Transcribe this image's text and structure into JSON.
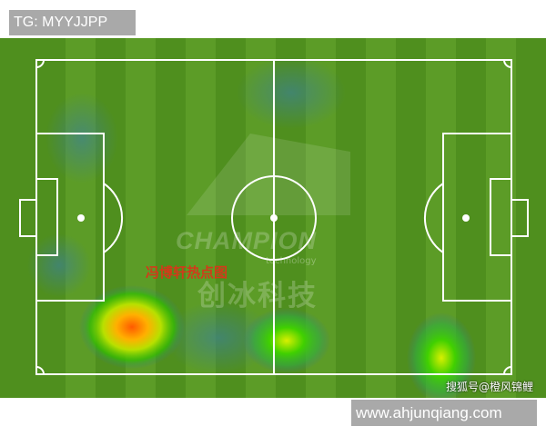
{
  "top_label": "TG: MYYJJPP",
  "watermark": {
    "logo": "CHAMPION",
    "subtitle": "technology",
    "chinese": "创冰科技"
  },
  "overlay_title": "冯博轩热点图",
  "credit": "搜狐号@橙风锦鲤",
  "url_label": "www.ahjunqiang.com",
  "colors": {
    "grass_dark": "#4f8f1e",
    "grass_light": "#5c9c27",
    "label_bg": "#a9a9a9"
  }
}
